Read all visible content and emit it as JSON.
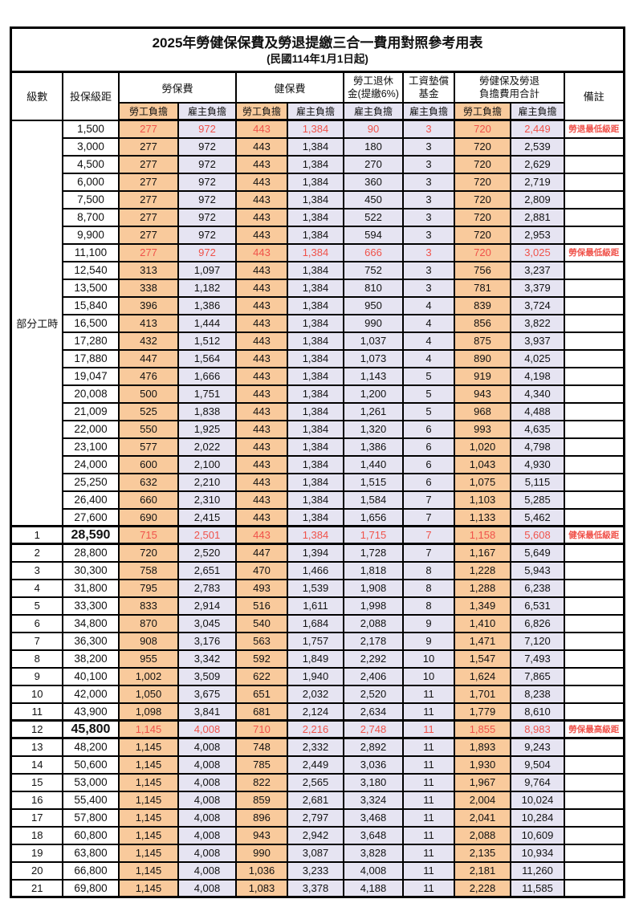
{
  "title": "2025年勞健保保費及勞退提繳三合一費用對照參考用表",
  "subtitle": "(民國114年1月1日起)",
  "header": {
    "level": "級數",
    "bracket": "投保級距",
    "labor_ins": "勞保費",
    "health_ins": "健保費",
    "pension_line1": "勞工退休",
    "pension_line2": "金(提繳6%)",
    "wage_fund_line1": "工資墊償",
    "wage_fund_line2": "基金",
    "total_line1": "勞健保及勞退",
    "total_line2": "負擔費用合計",
    "remark": "備註",
    "employee": "勞工負擔",
    "employer": "雇主負擔"
  },
  "part_time_label": "部分工時",
  "part_time_rowspan": 23,
  "colors": {
    "employee_bg": "#F9CA9C",
    "employer_bg": "#E6E4F2",
    "highlight_red": "#F0524A",
    "border": "#000000"
  },
  "rows": [
    {
      "level": "",
      "bracket": "1,500",
      "values": [
        "277",
        "972",
        "443",
        "1,384",
        "90",
        "3",
        "720",
        "2,449"
      ],
      "remark": "勞退最低級距",
      "highlight": true,
      "emphasis": false
    },
    {
      "level": "",
      "bracket": "3,000",
      "values": [
        "277",
        "972",
        "443",
        "1,384",
        "180",
        "3",
        "720",
        "2,539"
      ],
      "remark": "",
      "highlight": false,
      "emphasis": false
    },
    {
      "level": "",
      "bracket": "4,500",
      "values": [
        "277",
        "972",
        "443",
        "1,384",
        "270",
        "3",
        "720",
        "2,629"
      ],
      "remark": "",
      "highlight": false,
      "emphasis": false
    },
    {
      "level": "",
      "bracket": "6,000",
      "values": [
        "277",
        "972",
        "443",
        "1,384",
        "360",
        "3",
        "720",
        "2,719"
      ],
      "remark": "",
      "highlight": false,
      "emphasis": false
    },
    {
      "level": "",
      "bracket": "7,500",
      "values": [
        "277",
        "972",
        "443",
        "1,384",
        "450",
        "3",
        "720",
        "2,809"
      ],
      "remark": "",
      "highlight": false,
      "emphasis": false
    },
    {
      "level": "",
      "bracket": "8,700",
      "values": [
        "277",
        "972",
        "443",
        "1,384",
        "522",
        "3",
        "720",
        "2,881"
      ],
      "remark": "",
      "highlight": false,
      "emphasis": false
    },
    {
      "level": "",
      "bracket": "9,900",
      "values": [
        "277",
        "972",
        "443",
        "1,384",
        "594",
        "3",
        "720",
        "2,953"
      ],
      "remark": "",
      "highlight": false,
      "emphasis": false
    },
    {
      "level": "",
      "bracket": "11,100",
      "values": [
        "277",
        "972",
        "443",
        "1,384",
        "666",
        "3",
        "720",
        "3,025"
      ],
      "remark": "勞保最低級距",
      "highlight": true,
      "emphasis": false
    },
    {
      "level": "",
      "bracket": "12,540",
      "values": [
        "313",
        "1,097",
        "443",
        "1,384",
        "752",
        "3",
        "756",
        "3,237"
      ],
      "remark": "",
      "highlight": false,
      "emphasis": false
    },
    {
      "level": "",
      "bracket": "13,500",
      "values": [
        "338",
        "1,182",
        "443",
        "1,384",
        "810",
        "3",
        "781",
        "3,379"
      ],
      "remark": "",
      "highlight": false,
      "emphasis": false
    },
    {
      "level": "",
      "bracket": "15,840",
      "values": [
        "396",
        "1,386",
        "443",
        "1,384",
        "950",
        "4",
        "839",
        "3,724"
      ],
      "remark": "",
      "highlight": false,
      "emphasis": false
    },
    {
      "level": "",
      "bracket": "16,500",
      "values": [
        "413",
        "1,444",
        "443",
        "1,384",
        "990",
        "4",
        "856",
        "3,822"
      ],
      "remark": "",
      "highlight": false,
      "emphasis": false
    },
    {
      "level": "",
      "bracket": "17,280",
      "values": [
        "432",
        "1,512",
        "443",
        "1,384",
        "1,037",
        "4",
        "875",
        "3,937"
      ],
      "remark": "",
      "highlight": false,
      "emphasis": false
    },
    {
      "level": "",
      "bracket": "17,880",
      "values": [
        "447",
        "1,564",
        "443",
        "1,384",
        "1,073",
        "4",
        "890",
        "4,025"
      ],
      "remark": "",
      "highlight": false,
      "emphasis": false
    },
    {
      "level": "",
      "bracket": "19,047",
      "values": [
        "476",
        "1,666",
        "443",
        "1,384",
        "1,143",
        "5",
        "919",
        "4,198"
      ],
      "remark": "",
      "highlight": false,
      "emphasis": false
    },
    {
      "level": "",
      "bracket": "20,008",
      "values": [
        "500",
        "1,751",
        "443",
        "1,384",
        "1,200",
        "5",
        "943",
        "4,340"
      ],
      "remark": "",
      "highlight": false,
      "emphasis": false
    },
    {
      "level": "",
      "bracket": "21,009",
      "values": [
        "525",
        "1,838",
        "443",
        "1,384",
        "1,261",
        "5",
        "968",
        "4,488"
      ],
      "remark": "",
      "highlight": false,
      "emphasis": false
    },
    {
      "level": "",
      "bracket": "22,000",
      "values": [
        "550",
        "1,925",
        "443",
        "1,384",
        "1,320",
        "6",
        "993",
        "4,635"
      ],
      "remark": "",
      "highlight": false,
      "emphasis": false
    },
    {
      "level": "",
      "bracket": "23,100",
      "values": [
        "577",
        "2,022",
        "443",
        "1,384",
        "1,386",
        "6",
        "1,020",
        "4,798"
      ],
      "remark": "",
      "highlight": false,
      "emphasis": false
    },
    {
      "level": "",
      "bracket": "24,000",
      "values": [
        "600",
        "2,100",
        "443",
        "1,384",
        "1,440",
        "6",
        "1,043",
        "4,930"
      ],
      "remark": "",
      "highlight": false,
      "emphasis": false
    },
    {
      "level": "",
      "bracket": "25,250",
      "values": [
        "632",
        "2,210",
        "443",
        "1,384",
        "1,515",
        "6",
        "1,075",
        "5,115"
      ],
      "remark": "",
      "highlight": false,
      "emphasis": false
    },
    {
      "level": "",
      "bracket": "26,400",
      "values": [
        "660",
        "2,310",
        "443",
        "1,384",
        "1,584",
        "7",
        "1,103",
        "5,285"
      ],
      "remark": "",
      "highlight": false,
      "emphasis": false
    },
    {
      "level": "",
      "bracket": "27,600",
      "values": [
        "690",
        "2,415",
        "443",
        "1,384",
        "1,656",
        "7",
        "1,133",
        "5,462"
      ],
      "remark": "",
      "highlight": false,
      "emphasis": false
    },
    {
      "level": "1",
      "bracket": "28,590",
      "values": [
        "715",
        "2,501",
        "443",
        "1,384",
        "1,715",
        "7",
        "1,158",
        "5,608"
      ],
      "remark": "健保最低級距",
      "highlight": true,
      "emphasis": true
    },
    {
      "level": "2",
      "bracket": "28,800",
      "values": [
        "720",
        "2,520",
        "447",
        "1,394",
        "1,728",
        "7",
        "1,167",
        "5,649"
      ],
      "remark": "",
      "highlight": false,
      "emphasis": false
    },
    {
      "level": "3",
      "bracket": "30,300",
      "values": [
        "758",
        "2,651",
        "470",
        "1,466",
        "1,818",
        "8",
        "1,228",
        "5,943"
      ],
      "remark": "",
      "highlight": false,
      "emphasis": false
    },
    {
      "level": "4",
      "bracket": "31,800",
      "values": [
        "795",
        "2,783",
        "493",
        "1,539",
        "1,908",
        "8",
        "1,288",
        "6,238"
      ],
      "remark": "",
      "highlight": false,
      "emphasis": false
    },
    {
      "level": "5",
      "bracket": "33,300",
      "values": [
        "833",
        "2,914",
        "516",
        "1,611",
        "1,998",
        "8",
        "1,349",
        "6,531"
      ],
      "remark": "",
      "highlight": false,
      "emphasis": false
    },
    {
      "level": "6",
      "bracket": "34,800",
      "values": [
        "870",
        "3,045",
        "540",
        "1,684",
        "2,088",
        "9",
        "1,410",
        "6,826"
      ],
      "remark": "",
      "highlight": false,
      "emphasis": false
    },
    {
      "level": "7",
      "bracket": "36,300",
      "values": [
        "908",
        "3,176",
        "563",
        "1,757",
        "2,178",
        "9",
        "1,471",
        "7,120"
      ],
      "remark": "",
      "highlight": false,
      "emphasis": false
    },
    {
      "level": "8",
      "bracket": "38,200",
      "values": [
        "955",
        "3,342",
        "592",
        "1,849",
        "2,292",
        "10",
        "1,547",
        "7,493"
      ],
      "remark": "",
      "highlight": false,
      "emphasis": false
    },
    {
      "level": "9",
      "bracket": "40,100",
      "values": [
        "1,002",
        "3,509",
        "622",
        "1,940",
        "2,406",
        "10",
        "1,624",
        "7,865"
      ],
      "remark": "",
      "highlight": false,
      "emphasis": false
    },
    {
      "level": "10",
      "bracket": "42,000",
      "values": [
        "1,050",
        "3,675",
        "651",
        "2,032",
        "2,520",
        "11",
        "1,701",
        "8,238"
      ],
      "remark": "",
      "highlight": false,
      "emphasis": false
    },
    {
      "level": "11",
      "bracket": "43,900",
      "values": [
        "1,098",
        "3,841",
        "681",
        "2,124",
        "2,634",
        "11",
        "1,779",
        "8,610"
      ],
      "remark": "",
      "highlight": false,
      "emphasis": false
    },
    {
      "level": "12",
      "bracket": "45,800",
      "values": [
        "1,145",
        "4,008",
        "710",
        "2,216",
        "2,748",
        "11",
        "1,855",
        "8,983"
      ],
      "remark": "勞保最高級距",
      "highlight": true,
      "emphasis": true
    },
    {
      "level": "13",
      "bracket": "48,200",
      "values": [
        "1,145",
        "4,008",
        "748",
        "2,332",
        "2,892",
        "11",
        "1,893",
        "9,243"
      ],
      "remark": "",
      "highlight": false,
      "emphasis": false
    },
    {
      "level": "14",
      "bracket": "50,600",
      "values": [
        "1,145",
        "4,008",
        "785",
        "2,449",
        "3,036",
        "11",
        "1,930",
        "9,504"
      ],
      "remark": "",
      "highlight": false,
      "emphasis": false
    },
    {
      "level": "15",
      "bracket": "53,000",
      "values": [
        "1,145",
        "4,008",
        "822",
        "2,565",
        "3,180",
        "11",
        "1,967",
        "9,764"
      ],
      "remark": "",
      "highlight": false,
      "emphasis": false
    },
    {
      "level": "16",
      "bracket": "55,400",
      "values": [
        "1,145",
        "4,008",
        "859",
        "2,681",
        "3,324",
        "11",
        "2,004",
        "10,024"
      ],
      "remark": "",
      "highlight": false,
      "emphasis": false
    },
    {
      "level": "17",
      "bracket": "57,800",
      "values": [
        "1,145",
        "4,008",
        "896",
        "2,797",
        "3,468",
        "11",
        "2,041",
        "10,284"
      ],
      "remark": "",
      "highlight": false,
      "emphasis": false
    },
    {
      "level": "18",
      "bracket": "60,800",
      "values": [
        "1,145",
        "4,008",
        "943",
        "2,942",
        "3,648",
        "11",
        "2,088",
        "10,609"
      ],
      "remark": "",
      "highlight": false,
      "emphasis": false
    },
    {
      "level": "19",
      "bracket": "63,800",
      "values": [
        "1,145",
        "4,008",
        "990",
        "3,087",
        "3,828",
        "11",
        "2,135",
        "10,934"
      ],
      "remark": "",
      "highlight": false,
      "emphasis": false
    },
    {
      "level": "20",
      "bracket": "66,800",
      "values": [
        "1,145",
        "4,008",
        "1,036",
        "3,233",
        "4,008",
        "11",
        "2,181",
        "11,260"
      ],
      "remark": "",
      "highlight": false,
      "emphasis": false
    },
    {
      "level": "21",
      "bracket": "69,800",
      "values": [
        "1,145",
        "4,008",
        "1,083",
        "3,378",
        "4,188",
        "11",
        "2,228",
        "11,585"
      ],
      "remark": "",
      "highlight": false,
      "emphasis": false
    }
  ]
}
